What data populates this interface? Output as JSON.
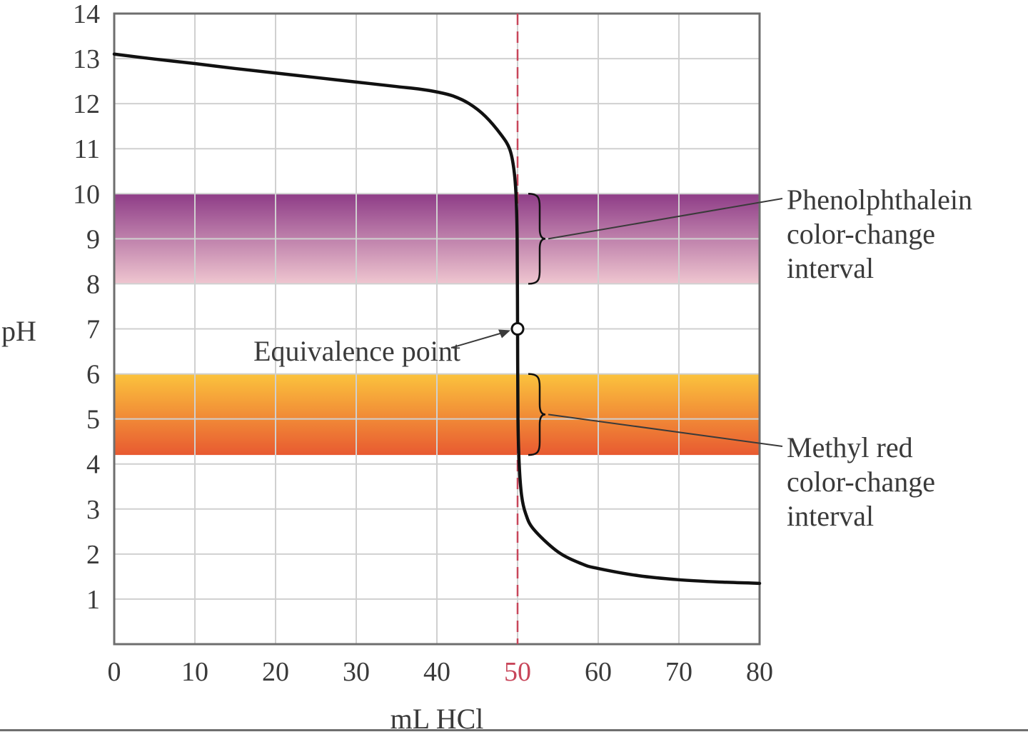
{
  "chart_data": {
    "type": "line",
    "xlabel": "mL HCl",
    "ylabel": "pH",
    "xlim": [
      0,
      80
    ],
    "ylim": [
      0,
      14
    ],
    "x_ticks": [
      0,
      10,
      20,
      30,
      40,
      50,
      60,
      70,
      80
    ],
    "y_ticks": [
      1,
      2,
      3,
      4,
      5,
      6,
      7,
      8,
      9,
      10,
      11,
      12,
      13,
      14
    ],
    "highlighted_x_tick": 50,
    "grid": true,
    "series": [
      {
        "points": [
          [
            0,
            13.1
          ],
          [
            5,
            12.99
          ],
          [
            10,
            12.89
          ],
          [
            15,
            12.78
          ],
          [
            20,
            12.68
          ],
          [
            25,
            12.58
          ],
          [
            30,
            12.48
          ],
          [
            35,
            12.38
          ],
          [
            38,
            12.32
          ],
          [
            40,
            12.26
          ],
          [
            42,
            12.17
          ],
          [
            44,
            12.0
          ],
          [
            46,
            11.72
          ],
          [
            48,
            11.3
          ],
          [
            49,
            11.0
          ],
          [
            49.5,
            10.6
          ],
          [
            49.8,
            10.0
          ],
          [
            49.95,
            9.0
          ],
          [
            50,
            7.0
          ],
          [
            50.05,
            5.0
          ],
          [
            50.2,
            4.0
          ],
          [
            50.5,
            3.3
          ],
          [
            51,
            2.9
          ],
          [
            52,
            2.55
          ],
          [
            55,
            2.05
          ],
          [
            58,
            1.78
          ],
          [
            60,
            1.68
          ],
          [
            65,
            1.52
          ],
          [
            70,
            1.43
          ],
          [
            75,
            1.38
          ],
          [
            80,
            1.35
          ]
        ]
      }
    ],
    "equivalence_line_x": 50,
    "equivalence_point": {
      "x": 50,
      "y": 7.0,
      "label": "Equivalence point"
    },
    "bands": [
      {
        "ymin": 8.0,
        "ymax": 10.0,
        "label_lines": [
          "Phenolphthalein",
          "color-change",
          "interval"
        ],
        "color_top": "#8e3c87",
        "color_bottom": "#efc6d0"
      },
      {
        "ymin": 4.2,
        "ymax": 6.0,
        "label_lines": [
          "Methyl red",
          "color-change",
          "interval"
        ],
        "color_top": "#fbc33d",
        "color_bottom": "#e85a31"
      }
    ],
    "colors": {
      "curve": "#111111",
      "equivalence_line": "#c8465a",
      "grid": "#d0d0d0",
      "frame": "#6e6e6e",
      "text": "#3a3a3a"
    }
  }
}
